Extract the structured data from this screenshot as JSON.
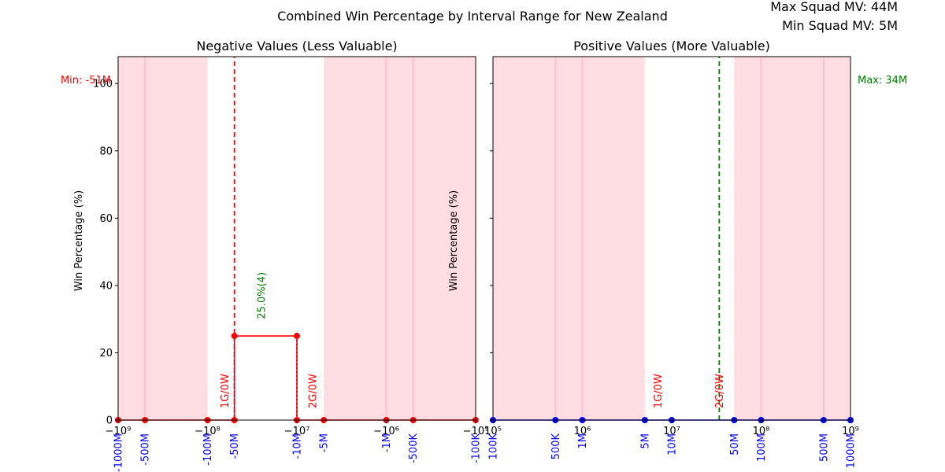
{
  "chart_data": {
    "type": "line",
    "title": "Combined Win Percentage by Interval Range for New Zealand",
    "info": {
      "max_squad_mv": "Max Squad MV: 44M",
      "min_squad_mv": "Min Squad MV: 5M"
    },
    "colors": {
      "negative": "#ff0000",
      "positive": "#0000ff",
      "highlight": "#008000",
      "band": "#ffdde2",
      "band_line": "#ffc0cb"
    },
    "panels": [
      {
        "title": "Negative Values (Less Valuable)",
        "ylabel": "Win Percentage (%)",
        "xscale": "symlog",
        "xlim": [
          -1000000000,
          -100000
        ],
        "ylim": [
          0,
          108
        ],
        "yticks": [
          0,
          20,
          40,
          60,
          80,
          100
        ],
        "xticks": [
          {
            "value": -1000000000,
            "label": "−10⁹"
          },
          {
            "value": -100000000,
            "label": "−10⁸"
          },
          {
            "value": -10000000,
            "label": "−10⁷"
          },
          {
            "value": -1000000,
            "label": "−10⁶"
          },
          {
            "value": -100000,
            "label": "−10⁵"
          }
        ],
        "interval_labels": [
          {
            "value": -1000000000,
            "label": "-1000M"
          },
          {
            "value": -500000000,
            "label": "-500M"
          },
          {
            "value": -100000000,
            "label": "-100M"
          },
          {
            "value": -50000000,
            "label": "-50M"
          },
          {
            "value": -10000000,
            "label": "-10M"
          },
          {
            "value": -5000000,
            "label": "-5M"
          },
          {
            "value": -1000000,
            "label": "-1M"
          },
          {
            "value": -500000,
            "label": "-500K"
          },
          {
            "value": -100000,
            "label": "-100K"
          }
        ],
        "shaded_ranges": [
          [
            -1000000000,
            -100000000
          ],
          [
            -5000000,
            -100000
          ]
        ],
        "band_lines": [
          -500000000,
          -1000000,
          -500000
        ],
        "series": [
          {
            "color": "#ff0000",
            "points": [
              {
                "x": -1000000000,
                "y": 0
              },
              {
                "x": -500000000,
                "y": 0
              },
              {
                "x": -100000000,
                "y": 0
              },
              {
                "x": -50000000,
                "y": 0
              },
              {
                "x": -50000000,
                "y": 25
              },
              {
                "x": -10000000,
                "y": 25
              },
              {
                "x": -10000000,
                "y": 0
              },
              {
                "x": -5000000,
                "y": 0
              },
              {
                "x": -1000000,
                "y": 0
              },
              {
                "x": -500000,
                "y": 0
              },
              {
                "x": -100000,
                "y": 0
              }
            ]
          }
        ],
        "vlines": [
          {
            "x": -50000000,
            "color": "#ff0000",
            "style": "dashed",
            "to": 108
          },
          {
            "x": -50000000,
            "color": "#0000ff",
            "style": "dotted",
            "to": 25
          },
          {
            "x": -10000000,
            "color": "#0000ff",
            "style": "dotted",
            "to": 25
          }
        ],
        "annotations": [
          {
            "x": -50000000,
            "y": 3.5,
            "text": "1G/0W",
            "color": "#ff0000",
            "dx": -12
          },
          {
            "x": -10000000,
            "y": 3.5,
            "text": "2G/0W",
            "color": "#ff0000",
            "dx": 20
          },
          {
            "x": -25000000,
            "y": 30,
            "text": "25.0%(4)",
            "color": "#008000",
            "dx": 0
          }
        ],
        "side_label": {
          "text": "Min: -51M",
          "color": "#ff0000",
          "side": "left"
        }
      },
      {
        "title": "Positive Values (More Valuable)",
        "ylabel": "Win Percentage (%)",
        "xscale": "log",
        "xlim": [
          100000,
          1000000000
        ],
        "ylim": [
          0,
          108
        ],
        "yticks": [
          0,
          20,
          40,
          60,
          80,
          100
        ],
        "xticks": [
          {
            "value": 100000,
            "label": "10⁵"
          },
          {
            "value": 1000000,
            "label": "10⁶"
          },
          {
            "value": 10000000,
            "label": "10⁷"
          },
          {
            "value": 100000000,
            "label": "10⁸"
          },
          {
            "value": 1000000000,
            "label": "10⁹"
          }
        ],
        "interval_labels": [
          {
            "value": 100000,
            "label": "100K"
          },
          {
            "value": 500000,
            "label": "500K"
          },
          {
            "value": 1000000,
            "label": "1M"
          },
          {
            "value": 5000000,
            "label": "5M"
          },
          {
            "value": 10000000,
            "label": "10M"
          },
          {
            "value": 50000000,
            "label": "50M"
          },
          {
            "value": 100000000,
            "label": "100M"
          },
          {
            "value": 500000000,
            "label": "500M"
          },
          {
            "value": 1000000000,
            "label": "1000M"
          }
        ],
        "shaded_ranges": [
          [
            100000,
            5000000
          ],
          [
            50000000,
            1000000000
          ]
        ],
        "band_lines": [
          500000,
          1000000,
          100000000,
          500000000
        ],
        "series": [
          {
            "color": "#0000ff",
            "points": [
              {
                "x": 100000,
                "y": 0
              },
              {
                "x": 500000,
                "y": 0
              },
              {
                "x": 1000000,
                "y": 0
              },
              {
                "x": 5000000,
                "y": 0
              },
              {
                "x": 10000000,
                "y": 0
              },
              {
                "x": 50000000,
                "y": 0
              },
              {
                "x": 100000000,
                "y": 0
              },
              {
                "x": 500000000,
                "y": 0
              },
              {
                "x": 1000000000,
                "y": 0
              }
            ]
          }
        ],
        "vlines": [
          {
            "x": 34000000,
            "color": "#008000",
            "style": "dashed",
            "to": 108
          }
        ],
        "annotations": [
          {
            "x": 7000000,
            "y": 3.5,
            "text": "1G/0W",
            "color": "#ff0000",
            "dx": 0
          },
          {
            "x": 34000000,
            "y": 3.5,
            "text": "2G/0W",
            "color": "#ff0000",
            "dx": 0
          }
        ],
        "side_label": {
          "text": "Max: 34M",
          "color": "#008000",
          "side": "right"
        }
      }
    ]
  }
}
